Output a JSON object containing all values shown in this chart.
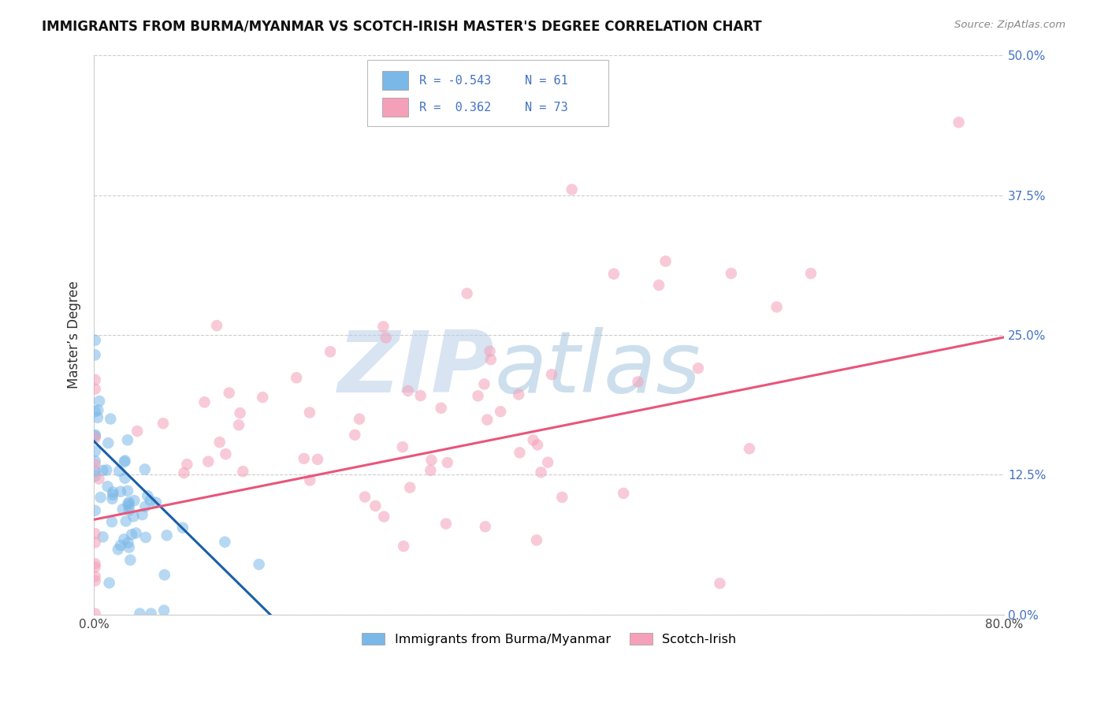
{
  "title": "IMMIGRANTS FROM BURMA/MYANMAR VS SCOTCH-IRISH MASTER'S DEGREE CORRELATION CHART",
  "source": "Source: ZipAtlas.com",
  "ylabel": "Master’s Degree",
  "xlim": [
    0.0,
    0.8
  ],
  "ylim": [
    0.0,
    0.5
  ],
  "xticks": [
    0.0,
    0.2,
    0.4,
    0.6,
    0.8
  ],
  "xtick_labels": [
    "0.0%",
    "",
    "",
    "",
    "80.0%"
  ],
  "ytick_labels_right": [
    "0.0%",
    "12.5%",
    "25.0%",
    "37.5%",
    "50.0%"
  ],
  "yticks": [
    0.0,
    0.125,
    0.25,
    0.375,
    0.5
  ],
  "blue_color": "#7ab8e8",
  "pink_color": "#f4a0b8",
  "blue_line_color": "#1a5fa8",
  "pink_line_color": "#e8567a",
  "legend_label_blue": "Immigrants from Burma/Myanmar",
  "legend_label_pink": "Scotch-Irish",
  "watermark_zip": "ZIP",
  "watermark_atlas": "atlas",
  "blue_R": -0.543,
  "blue_N": 61,
  "pink_R": 0.362,
  "pink_N": 73,
  "blue_line_x0": 0.0,
  "blue_line_x1": 0.155,
  "blue_line_y0": 0.155,
  "blue_line_y1": 0.0,
  "pink_line_x0": 0.0,
  "pink_line_x1": 0.8,
  "pink_line_y0": 0.085,
  "pink_line_y1": 0.248
}
